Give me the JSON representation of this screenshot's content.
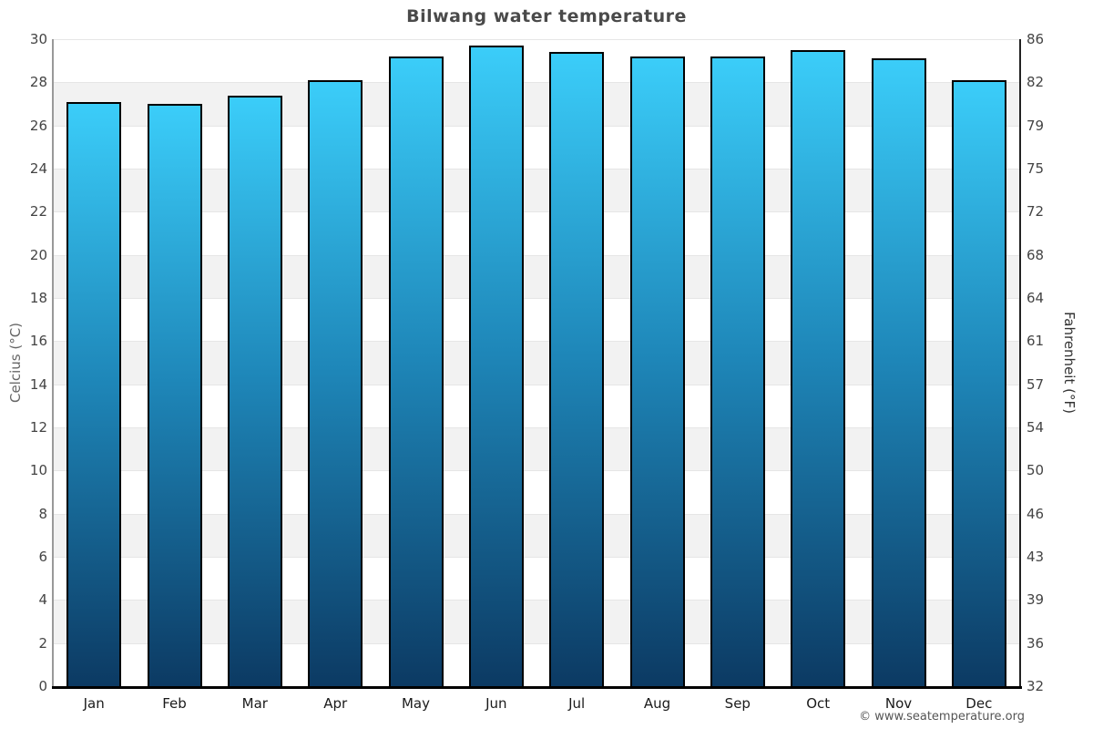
{
  "page": {
    "credit": "© www.seatemperature.org"
  },
  "chart_data": {
    "type": "bar",
    "title": "Bilwang water temperature",
    "categories": [
      "Jan",
      "Feb",
      "Mar",
      "Apr",
      "May",
      "Jun",
      "Jul",
      "Aug",
      "Sep",
      "Oct",
      "Nov",
      "Dec"
    ],
    "values": [
      27.1,
      27.0,
      27.4,
      28.1,
      29.2,
      29.7,
      29.4,
      29.2,
      29.2,
      29.5,
      29.1,
      28.1
    ],
    "unit": "°C",
    "xlabel": "",
    "ylabel_left": "Celcius (°C)",
    "ylabel_right": "Fahrenheit (°F)",
    "ylim": [
      0,
      30
    ],
    "yticks_celsius": [
      0,
      2,
      4,
      6,
      8,
      10,
      12,
      14,
      16,
      18,
      20,
      22,
      24,
      26,
      28,
      30
    ],
    "ytick_labels_fahrenheit": [
      "32",
      "36",
      "39",
      "43",
      "46",
      "50",
      "54",
      "57",
      "61",
      "64",
      "68",
      "72",
      "75",
      "79",
      "82",
      "86"
    ],
    "legend": "none",
    "grid": "alternating horizontal bands every 2°C (white / light gray) with thin gridlines"
  },
  "colors": {
    "title": "#4a4a4a",
    "tick_labels": "#444444",
    "month_labels": "#1a1a1a",
    "band_gray": "#f2f2f2",
    "gridline": "#e6e6e6",
    "axis_left_line": "#999999",
    "axis_right_line": "#222222",
    "axis_bottom_line": "#000000",
    "ylabel_left": "#666666",
    "ylabel_right": "#333333",
    "credit": "#555555",
    "bar_gradient_top": "#3bcdf9",
    "bar_gradient_mid": "#1e86b8",
    "bar_gradient_bottom": "#0c3a63",
    "bar_border": "#000000"
  }
}
